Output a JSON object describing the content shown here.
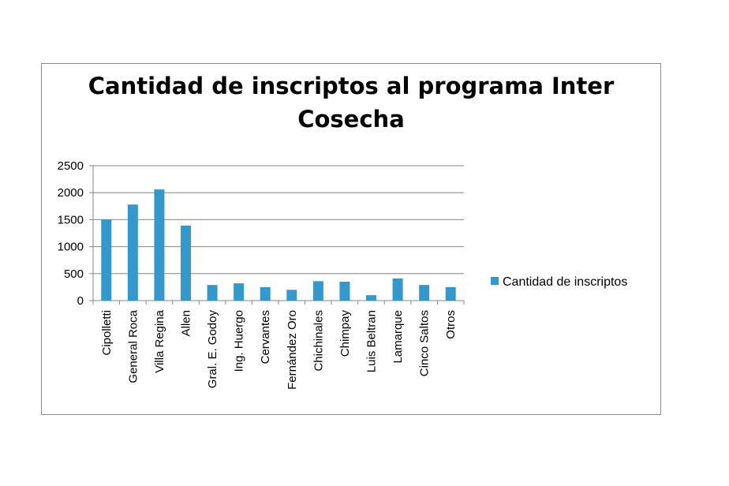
{
  "chart_data": {
    "type": "bar",
    "title": "Cantidad de inscriptos al programa Inter Cosecha",
    "categories": [
      "Cipolletti",
      "General Roca",
      "Villa Regina",
      "Allen",
      "Gral. E. Godoy",
      "Ing. Huergo",
      "Cervantes",
      "Fernández Oro",
      "Chichinales",
      "Chimpay",
      "Luis Beltran",
      "Lamarque",
      "Cinco Saltos",
      "Otros"
    ],
    "series": [
      {
        "name": "Cantidad de inscriptos",
        "values": [
          1500,
          1780,
          2060,
          1390,
          290,
          320,
          250,
          200,
          360,
          350,
          100,
          410,
          290,
          250
        ],
        "color": "#3399cc"
      }
    ],
    "yticks": [
      "0",
      "500",
      "1000",
      "1500",
      "2000",
      "2500"
    ],
    "ylim": [
      0,
      2500
    ],
    "grid": true,
    "legend": "right"
  }
}
